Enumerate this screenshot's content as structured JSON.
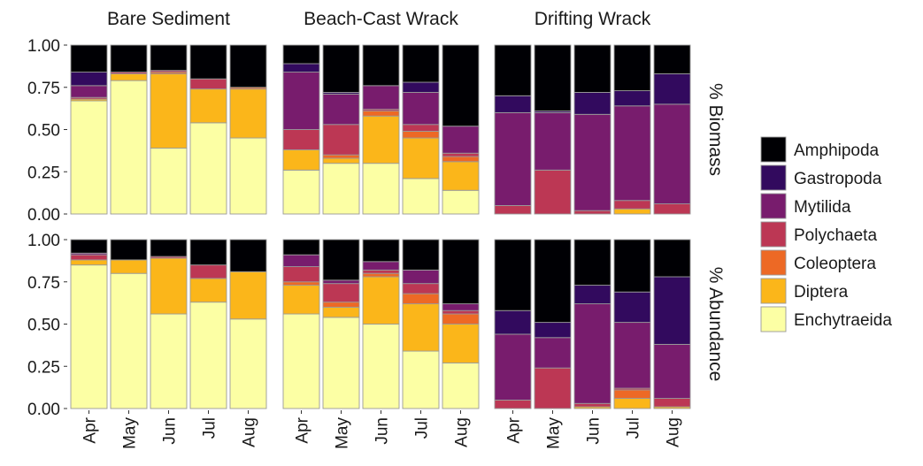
{
  "chart_data": {
    "type": "bar",
    "stacked": true,
    "normalized": true,
    "facet_columns": [
      "Bare Sediment",
      "Beach-Cast Wrack",
      "Drifting Wrack"
    ],
    "facet_rows": [
      "% Biomass",
      "% Abundance"
    ],
    "categories": [
      "Apr",
      "May",
      "Jun",
      "Jul",
      "Aug"
    ],
    "ylim": [
      0,
      1
    ],
    "yticks": [
      "0.00",
      "0.25",
      "0.50",
      "0.75",
      "1.00"
    ],
    "legend_position": "right",
    "grid": false,
    "legend": [
      "Amphipoda",
      "Gastropoda",
      "Mytilida",
      "Polychaeta",
      "Coleoptera",
      "Diptera",
      "Enchytraeida"
    ],
    "stack_order": [
      "Enchytraeida",
      "Diptera",
      "Coleoptera",
      "Polychaeta",
      "Mytilida",
      "Gastropoda",
      "Amphipoda"
    ],
    "colors": {
      "Amphipoda": "#000004",
      "Gastropoda": "#320a5e",
      "Mytilida": "#781c6d",
      "Polychaeta": "#bc3754",
      "Coleoptera": "#ed6925",
      "Diptera": "#fbb61a",
      "Enchytraeida": "#fcffa4"
    },
    "panels": [
      {
        "column": "Bare Sediment",
        "row": "% Biomass",
        "values": {
          "Enchytraeida": [
            0.67,
            0.79,
            0.39,
            0.54,
            0.45
          ],
          "Diptera": [
            0.01,
            0.04,
            0.44,
            0.2,
            0.29
          ],
          "Coleoptera": [
            0.0,
            0.0,
            0.01,
            0.0,
            0.01
          ],
          "Polychaeta": [
            0.01,
            0.01,
            0.01,
            0.06,
            0.0
          ],
          "Mytilida": [
            0.07,
            0.0,
            0.0,
            0.0,
            0.0
          ],
          "Gastropoda": [
            0.08,
            0.0,
            0.0,
            0.0,
            0.0
          ],
          "Amphipoda": [
            0.16,
            0.16,
            0.15,
            0.2,
            0.25
          ]
        }
      },
      {
        "column": "Beach-Cast Wrack",
        "row": "% Biomass",
        "values": {
          "Enchytraeida": [
            0.26,
            0.3,
            0.3,
            0.21,
            0.14
          ],
          "Diptera": [
            0.12,
            0.03,
            0.28,
            0.24,
            0.17
          ],
          "Coleoptera": [
            0.0,
            0.02,
            0.03,
            0.04,
            0.03
          ],
          "Polychaeta": [
            0.12,
            0.18,
            0.01,
            0.04,
            0.02
          ],
          "Mytilida": [
            0.34,
            0.18,
            0.14,
            0.19,
            0.16
          ],
          "Gastropoda": [
            0.05,
            0.01,
            0.0,
            0.06,
            0.0
          ],
          "Amphipoda": [
            0.11,
            0.28,
            0.24,
            0.22,
            0.48
          ]
        }
      },
      {
        "column": "Drifting Wrack",
        "row": "% Biomass",
        "values": {
          "Enchytraeida": [
            0.0,
            0.0,
            0.0,
            0.0,
            0.0
          ],
          "Diptera": [
            0.0,
            0.0,
            0.0,
            0.03,
            0.0
          ],
          "Coleoptera": [
            0.0,
            0.0,
            0.0,
            0.0,
            0.0
          ],
          "Polychaeta": [
            0.05,
            0.26,
            0.02,
            0.05,
            0.06
          ],
          "Mytilida": [
            0.55,
            0.34,
            0.57,
            0.56,
            0.59
          ],
          "Gastropoda": [
            0.1,
            0.01,
            0.13,
            0.09,
            0.18
          ],
          "Amphipoda": [
            0.3,
            0.39,
            0.28,
            0.27,
            0.17
          ]
        }
      },
      {
        "column": "Bare Sediment",
        "row": "% Abundance",
        "values": {
          "Enchytraeida": [
            0.85,
            0.8,
            0.56,
            0.63,
            0.53
          ],
          "Diptera": [
            0.03,
            0.08,
            0.33,
            0.14,
            0.28
          ],
          "Coleoptera": [
            0.0,
            0.0,
            0.0,
            0.0,
            0.0
          ],
          "Polychaeta": [
            0.03,
            0.0,
            0.01,
            0.08,
            0.0
          ],
          "Mytilida": [
            0.01,
            0.0,
            0.0,
            0.0,
            0.0
          ],
          "Gastropoda": [
            0.0,
            0.0,
            0.0,
            0.0,
            0.0
          ],
          "Amphipoda": [
            0.08,
            0.12,
            0.1,
            0.15,
            0.19
          ]
        }
      },
      {
        "column": "Beach-Cast Wrack",
        "row": "% Abundance",
        "values": {
          "Enchytraeida": [
            0.56,
            0.54,
            0.5,
            0.34,
            0.27
          ],
          "Diptera": [
            0.17,
            0.06,
            0.28,
            0.28,
            0.23
          ],
          "Coleoptera": [
            0.02,
            0.03,
            0.02,
            0.06,
            0.06
          ],
          "Polychaeta": [
            0.09,
            0.11,
            0.02,
            0.06,
            0.02
          ],
          "Mytilida": [
            0.07,
            0.02,
            0.05,
            0.08,
            0.04
          ],
          "Gastropoda": [
            0.0,
            0.0,
            0.0,
            0.0,
            0.0
          ],
          "Amphipoda": [
            0.09,
            0.24,
            0.13,
            0.18,
            0.38
          ]
        }
      },
      {
        "column": "Drifting Wrack",
        "row": "% Abundance",
        "values": {
          "Enchytraeida": [
            0.0,
            0.0,
            0.0,
            0.0,
            0.0
          ],
          "Diptera": [
            0.0,
            0.0,
            0.01,
            0.06,
            0.01
          ],
          "Coleoptera": [
            0.0,
            0.0,
            0.0,
            0.05,
            0.0
          ],
          "Polychaeta": [
            0.05,
            0.24,
            0.02,
            0.01,
            0.05
          ],
          "Mytilida": [
            0.39,
            0.18,
            0.59,
            0.39,
            0.32
          ],
          "Gastropoda": [
            0.14,
            0.09,
            0.11,
            0.18,
            0.4
          ],
          "Amphipoda": [
            0.42,
            0.49,
            0.27,
            0.31,
            0.22
          ]
        }
      }
    ]
  }
}
